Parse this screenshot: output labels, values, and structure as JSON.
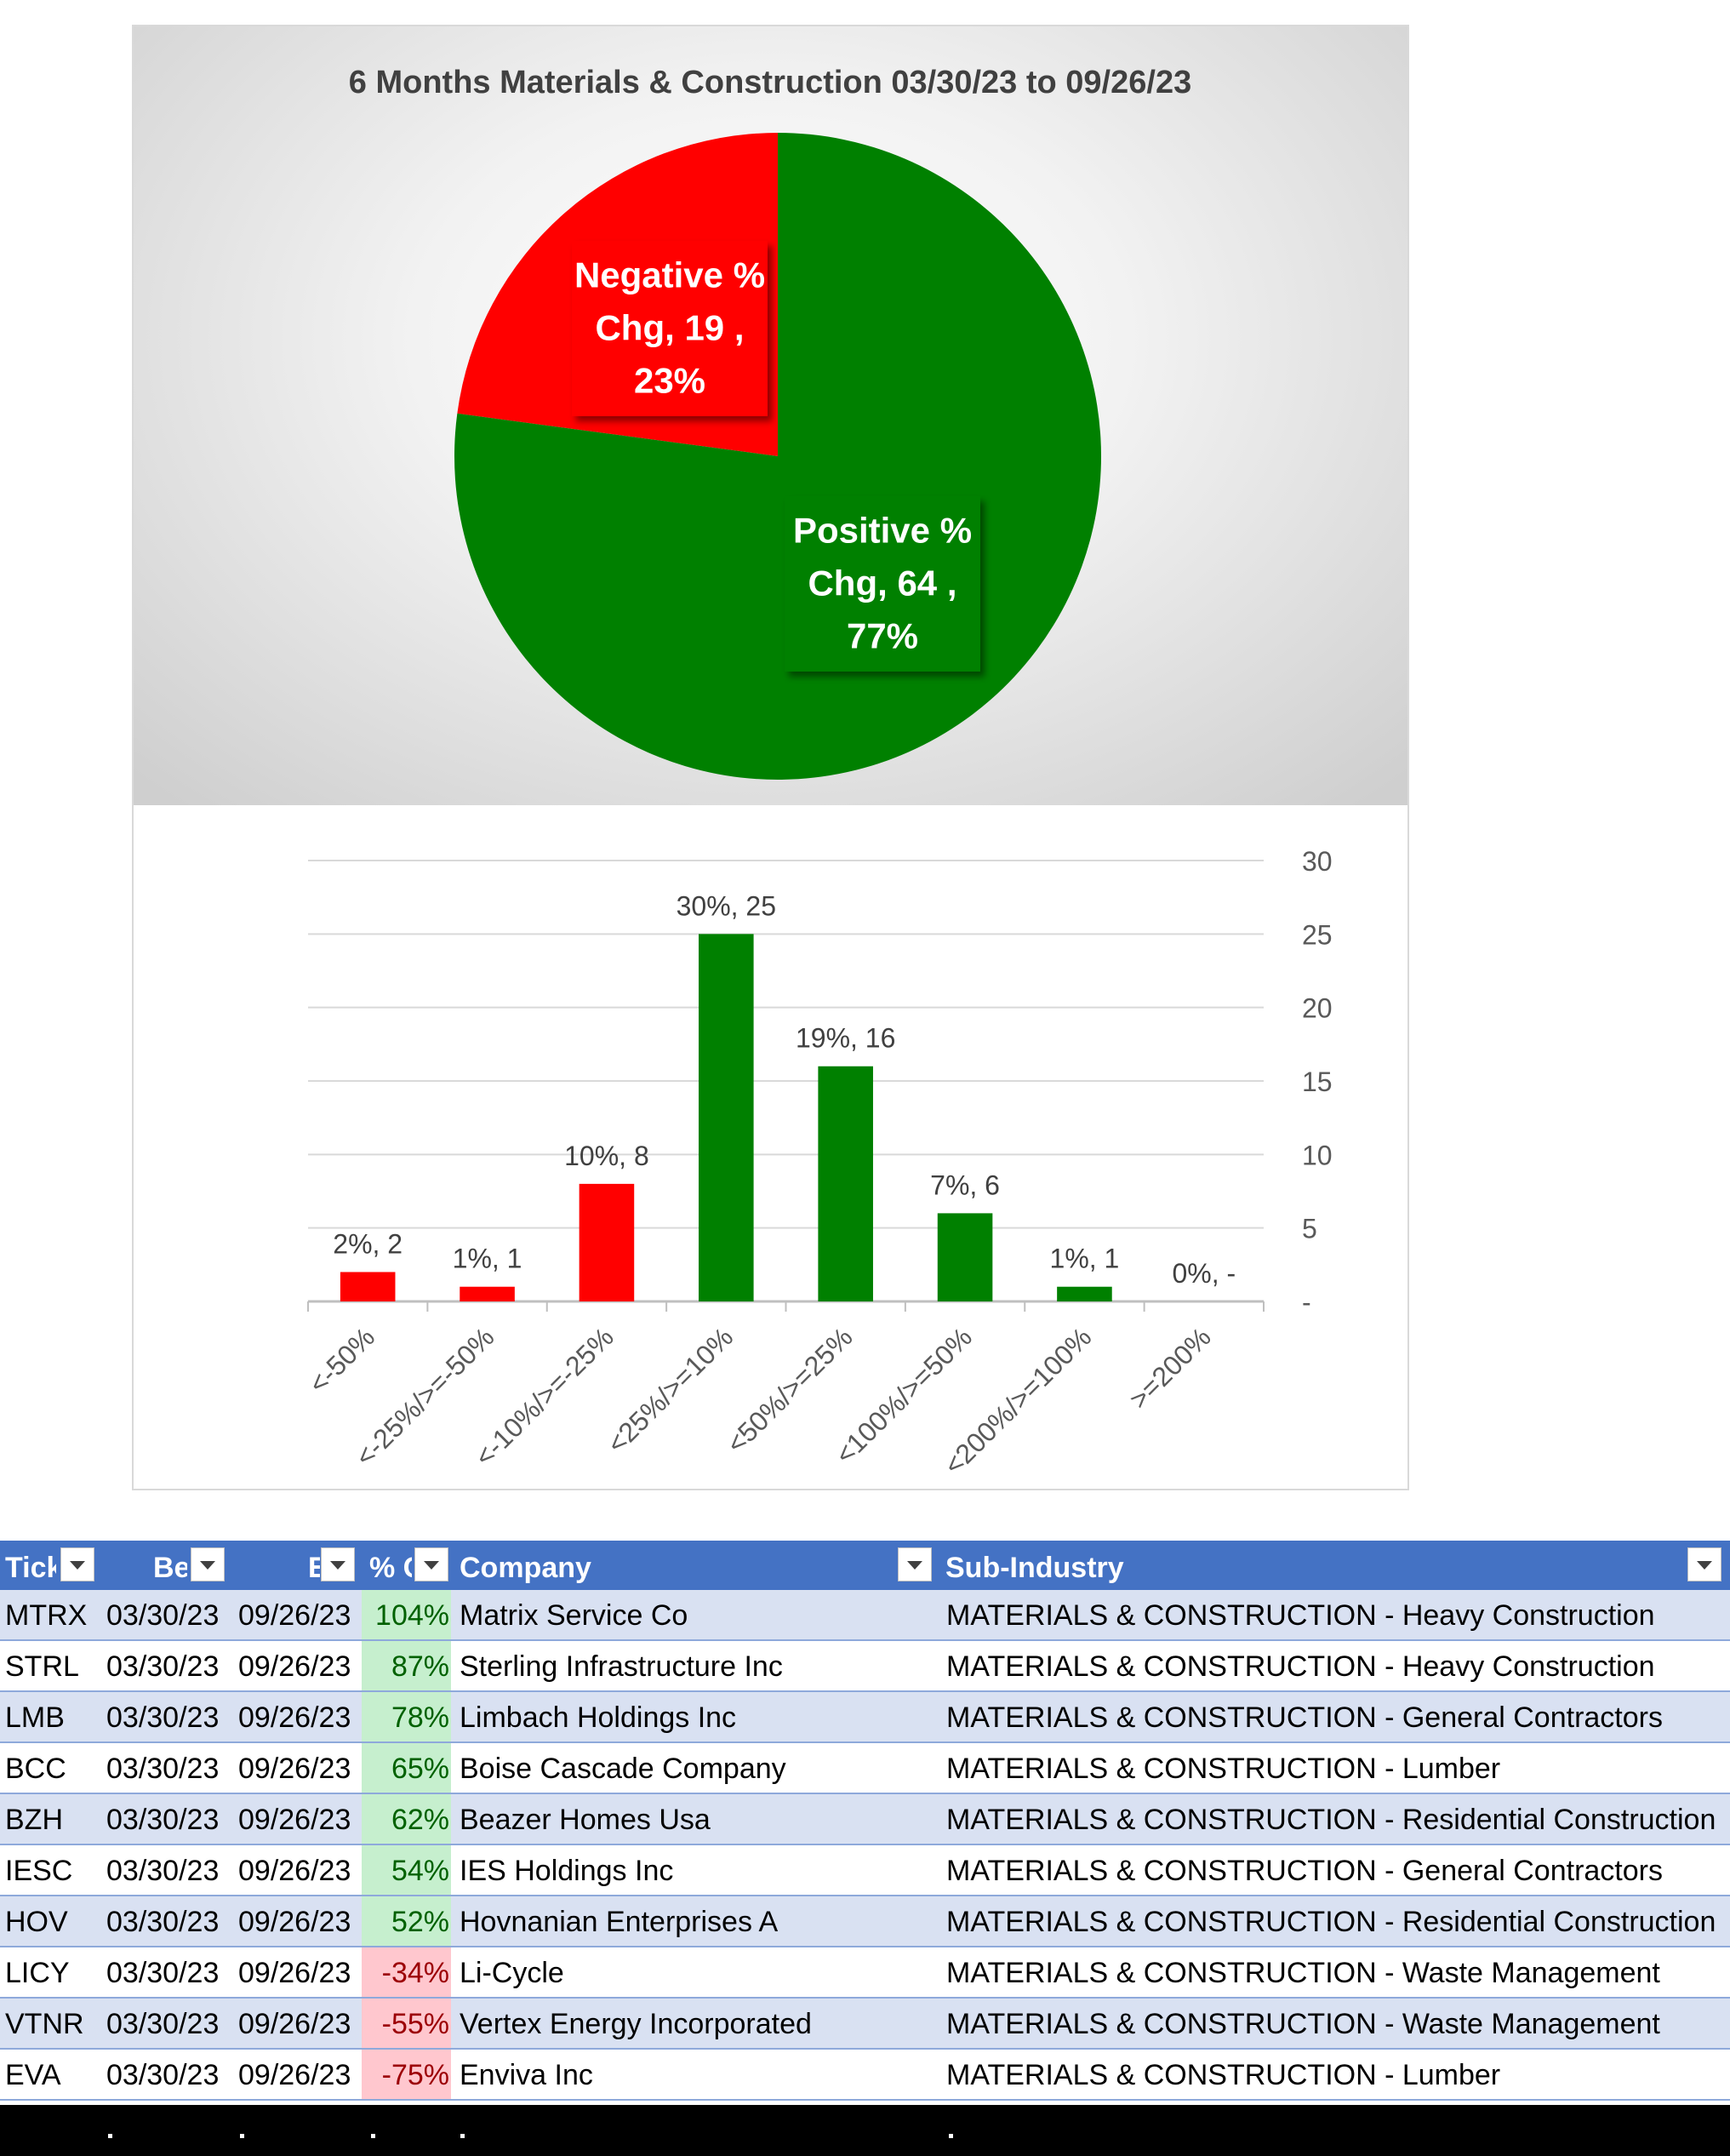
{
  "colors": {
    "positive": "#008000",
    "negative": "#ff0000",
    "header": "#4472c4",
    "band": "#d9e1f2",
    "pos_fill": "#c6efce",
    "neg_fill": "#ffc7ce"
  },
  "chart_data": [
    {
      "type": "pie",
      "title": "6 Months Materials & Construction 03/30/23 to 09/26/23",
      "slices": [
        {
          "name": "Negative % Chg",
          "value": 19,
          "percent": 23,
          "color": "#ff0000",
          "label_lines": [
            "Negative %",
            "Chg,  19 ,",
            "23%"
          ]
        },
        {
          "name": "Positive % Chg",
          "value": 64,
          "percent": 77,
          "color": "#008000",
          "label_lines": [
            "Positive %",
            "Chg,  64 ,",
            "77%"
          ]
        }
      ]
    },
    {
      "type": "bar",
      "categories": [
        "<-50%",
        "<-25%/>=-50%",
        "<-10%/>=-25%",
        "<25%/>=10%",
        "<50%/>=25%",
        "<100%/>=50%",
        "<200%/>=100%",
        ">=200%"
      ],
      "values": [
        2,
        1,
        8,
        25,
        16,
        6,
        1,
        0
      ],
      "data_labels": [
        "2%,  2",
        "1%,  1",
        "10%,  8",
        "30%,  25",
        "19%,  16",
        "7%,  6",
        "1%,  1",
        "0%,  -"
      ],
      "colors": [
        "#ff0000",
        "#ff0000",
        "#ff0000",
        "#008000",
        "#008000",
        "#008000",
        "#008000",
        "#008000"
      ],
      "ylim": [
        0,
        30
      ],
      "yticks": [
        0,
        5,
        10,
        15,
        20,
        25,
        30
      ],
      "ytick_labels": [
        "-",
        "5",
        "10",
        "15",
        "20",
        "25",
        "30"
      ],
      "y_axis_position": "right",
      "grid": true
    }
  ],
  "table": {
    "headers": [
      "Tick",
      "Be",
      "E",
      "% C",
      "Company",
      "Sub-Industry"
    ],
    "rows": [
      {
        "ticker": "MTRX",
        "begin": "03/30/23",
        "end": "09/26/23",
        "pct": "104%",
        "sign": "pos",
        "company": "Matrix Service Co",
        "sub": "MATERIALS & CONSTRUCTION - Heavy Construction"
      },
      {
        "ticker": "STRL",
        "begin": "03/30/23",
        "end": "09/26/23",
        "pct": "87%",
        "sign": "pos",
        "company": "Sterling Infrastructure Inc",
        "sub": "MATERIALS & CONSTRUCTION - Heavy Construction"
      },
      {
        "ticker": "LMB",
        "begin": "03/30/23",
        "end": "09/26/23",
        "pct": "78%",
        "sign": "pos",
        "company": "Limbach Holdings Inc",
        "sub": "MATERIALS & CONSTRUCTION - General Contractors"
      },
      {
        "ticker": "BCC",
        "begin": "03/30/23",
        "end": "09/26/23",
        "pct": "65%",
        "sign": "pos",
        "company": "Boise Cascade Company",
        "sub": "MATERIALS & CONSTRUCTION - Lumber"
      },
      {
        "ticker": "BZH",
        "begin": "03/30/23",
        "end": "09/26/23",
        "pct": "62%",
        "sign": "pos",
        "company": "Beazer Homes Usa",
        "sub": "MATERIALS & CONSTRUCTION - Residential Construction"
      },
      {
        "ticker": "IESC",
        "begin": "03/30/23",
        "end": "09/26/23",
        "pct": "54%",
        "sign": "pos",
        "company": "IES Holdings Inc",
        "sub": "MATERIALS & CONSTRUCTION - General Contractors"
      },
      {
        "ticker": "HOV",
        "begin": "03/30/23",
        "end": "09/26/23",
        "pct": "52%",
        "sign": "pos",
        "company": "Hovnanian Enterprises A",
        "sub": "MATERIALS & CONSTRUCTION - Residential Construction"
      },
      {
        "ticker": "LICY",
        "begin": "03/30/23",
        "end": "09/26/23",
        "pct": "-34%",
        "sign": "neg",
        "company": "Li-Cycle",
        "sub": "MATERIALS & CONSTRUCTION - Waste Management"
      },
      {
        "ticker": "VTNR",
        "begin": "03/30/23",
        "end": "09/26/23",
        "pct": "-55%",
        "sign": "neg",
        "company": "Vertex Energy Incorporated",
        "sub": "MATERIALS & CONSTRUCTION - Waste Management"
      },
      {
        "ticker": "EVA",
        "begin": "03/30/23",
        "end": "09/26/23",
        "pct": "-75%",
        "sign": "neg",
        "company": "Enviva Inc",
        "sub": "MATERIALS & CONSTRUCTION - Lumber"
      }
    ]
  }
}
